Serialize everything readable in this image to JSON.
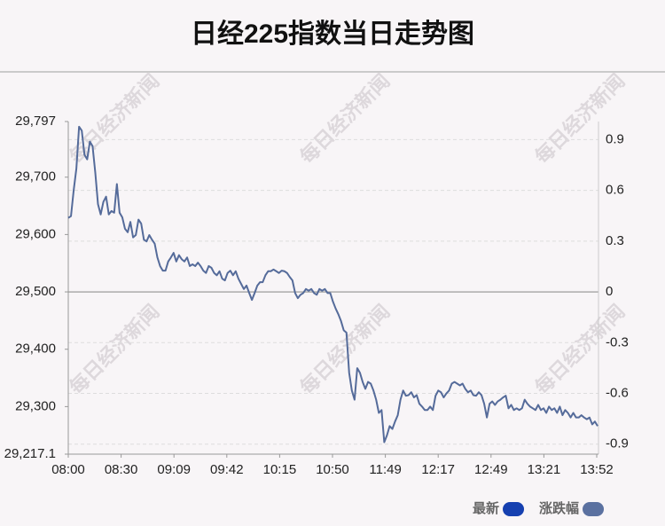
{
  "chart_data": {
    "type": "line",
    "title": "日经225指数当日走势图",
    "watermark": "每日经济新闻",
    "x_labels": [
      "08:00",
      "08:30",
      "09:09",
      "09:42",
      "10:15",
      "10:50",
      "11:49",
      "12:17",
      "12:49",
      "13:21",
      "13:52"
    ],
    "ylim": [
      29217.1,
      29797
    ],
    "yticks": [
      {
        "value": 29217.1,
        "label": "29,217.1"
      },
      {
        "value": 29300,
        "label": "29,300"
      },
      {
        "value": 29400,
        "label": "29,400"
      },
      {
        "value": 29500,
        "label": "29,500"
      },
      {
        "value": 29600,
        "label": "29,600"
      },
      {
        "value": 29700,
        "label": "29,700"
      },
      {
        "value": 29797,
        "label": "29,797"
      }
    ],
    "y2lim": [
      -0.959,
      1.007
    ],
    "y2ticks": [
      0.9,
      0.6,
      0.3,
      0,
      -0.3,
      -0.6,
      -0.9
    ],
    "grid": true,
    "legend": [
      {
        "name": "最新",
        "color": "#1640b0"
      },
      {
        "name": "涨跌幅",
        "color": "#5b71a0"
      }
    ],
    "series": [
      {
        "name": "最新",
        "color": "#556b9a",
        "values": [
          29629,
          29632,
          29677,
          29715,
          29788,
          29781,
          29739,
          29731,
          29762,
          29754,
          29708,
          29653,
          29635,
          29657,
          29666,
          29635,
          29641,
          29638,
          29688,
          29638,
          29630,
          29610,
          29604,
          29622,
          29595,
          29599,
          29626,
          29619,
          29591,
          29588,
          29599,
          29591,
          29584,
          29560,
          29545,
          29537,
          29537,
          29553,
          29560,
          29568,
          29553,
          29564,
          29557,
          29553,
          29560,
          29545,
          29548,
          29545,
          29551,
          29545,
          29537,
          29533,
          29545,
          29542,
          29533,
          29529,
          29536,
          29523,
          29520,
          29533,
          29537,
          29529,
          29536,
          29523,
          29514,
          29505,
          29511,
          29498,
          29486,
          29498,
          29511,
          29517,
          29517,
          29529,
          29536,
          29536,
          29539,
          29536,
          29533,
          29537,
          29536,
          29533,
          29526,
          29520,
          29498,
          29489,
          29495,
          29498,
          29505,
          29502,
          29505,
          29498,
          29495,
          29505,
          29502,
          29505,
          29498,
          29498,
          29483,
          29471,
          29461,
          29449,
          29433,
          29429,
          29359,
          29328,
          29312,
          29367,
          29359,
          29343,
          29331,
          29343,
          29340,
          29328,
          29312,
          29289,
          29294,
          29238,
          29250,
          29266,
          29261,
          29274,
          29285,
          29312,
          29328,
          29319,
          29320,
          29325,
          29316,
          29320,
          29305,
          29300,
          29294,
          29294,
          29300,
          29294,
          29319,
          29328,
          29325,
          29316,
          29323,
          29328,
          29340,
          29343,
          29340,
          29337,
          29340,
          29331,
          29325,
          29328,
          29320,
          29319,
          29325,
          29320,
          29305,
          29281,
          29305,
          29309,
          29303,
          29309,
          29312,
          29316,
          29319,
          29297,
          29303,
          29294,
          29297,
          29294,
          29297,
          29312,
          29305,
          29300,
          29297,
          29294,
          29303,
          29294,
          29297,
          29289,
          29300,
          29294,
          29297,
          29289,
          29300,
          29285,
          29294,
          29289,
          29281,
          29289,
          29281,
          29281,
          29285,
          29281,
          29278,
          29281,
          29269,
          29274,
          29266
        ]
      }
    ]
  }
}
